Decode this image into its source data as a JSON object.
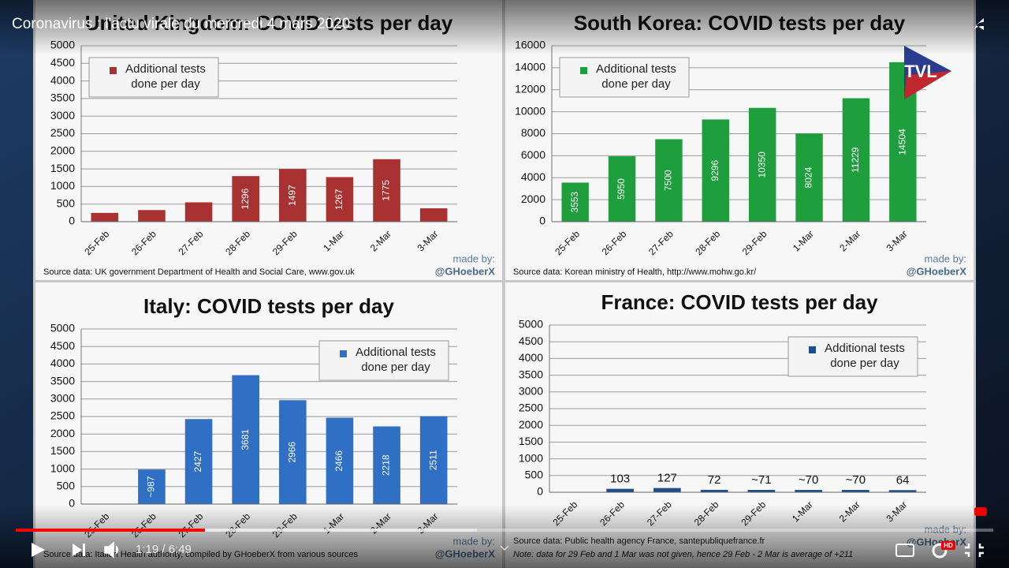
{
  "player": {
    "video_title": "Coronavirus : l'actu virale du mercredi 4 mars 2020",
    "time": "1:19 / 6:49",
    "logo": "TVL",
    "hd_badge": "HD"
  },
  "chart_data": [
    {
      "type": "bar",
      "title": "United Kingdom: COVID tests per day",
      "categories": [
        "25-Feb",
        "26-Feb",
        "27-Feb",
        "28-Feb",
        "29-Feb",
        "1-Mar",
        "2-Mar",
        "3-Mar"
      ],
      "series": [
        {
          "name": "Additional tests done per day",
          "color": "#a83232",
          "values": [
            250,
            330,
            550,
            1296,
            1497,
            1267,
            1775,
            380
          ]
        }
      ],
      "ylim": [
        0,
        5000
      ],
      "yticks": [
        0,
        500,
        1000,
        1500,
        2000,
        2500,
        3000,
        3500,
        4000,
        4500,
        5000
      ],
      "grid": true,
      "legend": "upper left",
      "source": "Source data: UK government Department of Health and Social Care, www.gov.uk",
      "credit_label": "made by:",
      "credit": "@GHoeberX"
    },
    {
      "type": "bar",
      "title": "South Korea: COVID tests per day",
      "categories": [
        "25-Feb",
        "26-Feb",
        "27-Feb",
        "28-Feb",
        "29-Feb",
        "1-Mar",
        "2-Mar",
        "3-Mar"
      ],
      "series": [
        {
          "name": "Additional tests done per day",
          "color": "#1e9e3c",
          "values": [
            3553,
            5950,
            7500,
            9296,
            10350,
            8024,
            11229,
            14504
          ]
        }
      ],
      "ylim": [
        0,
        16000
      ],
      "yticks": [
        0,
        2000,
        4000,
        6000,
        8000,
        10000,
        12000,
        14000,
        16000
      ],
      "grid": true,
      "legend": "upper left",
      "source": "Source data: Korean ministry of Health, http://www.mohw.go.kr/",
      "credit_label": "made by:",
      "credit": "@GHoeberX"
    },
    {
      "type": "bar",
      "title": "Italy: COVID tests per day",
      "categories": [
        "25-Feb",
        "26-Feb",
        "27-Feb",
        "28-Feb",
        "29-Feb",
        "1-Mar",
        "2-Mar",
        "3-Mar"
      ],
      "series": [
        {
          "name": "Additional tests done per day",
          "color": "#2f6fc4",
          "values": [
            null,
            987,
            2427,
            3681,
            2966,
            2466,
            2218,
            2511
          ],
          "value_labels": [
            null,
            "~987",
            "2427",
            "3681",
            "2966",
            "2466",
            "2218",
            "2511"
          ]
        }
      ],
      "ylim": [
        0,
        5000
      ],
      "yticks": [
        0,
        500,
        1000,
        1500,
        2000,
        2500,
        3000,
        3500,
        4000,
        4500,
        5000
      ],
      "grid": true,
      "legend": "upper right",
      "source": "Source data: Italian Health authority, compiled by GHoeberX from various sources",
      "credit_label": "made by:",
      "credit": "@GHoeberX"
    },
    {
      "type": "bar",
      "title": "France: COVID tests per day",
      "categories": [
        "25-Feb",
        "26-Feb",
        "27-Feb",
        "28-Feb",
        "29-Feb",
        "1-Mar",
        "2-Mar",
        "3-Mar"
      ],
      "series": [
        {
          "name": "Additional tests done per day",
          "color": "#1f4e8c",
          "values": [
            null,
            103,
            127,
            72,
            71,
            70,
            70,
            64
          ],
          "value_labels": [
            null,
            "103",
            "127",
            "72",
            "~71",
            "~70",
            "~70",
            "64"
          ]
        }
      ],
      "ylim": [
        0,
        5000
      ],
      "yticks": [
        0,
        500,
        1000,
        1500,
        2000,
        2500,
        3000,
        3500,
        4000,
        4500,
        5000
      ],
      "grid": true,
      "legend": "upper right",
      "source": "Source data: Public health agency France, santepubliquefrance.fr",
      "note": "Note: data for 29 Feb and 1 Mar was not given, hence 29 Feb - 2 Mar is average of +211",
      "credit_label": "made by:",
      "credit": "@GHoeberX"
    }
  ]
}
